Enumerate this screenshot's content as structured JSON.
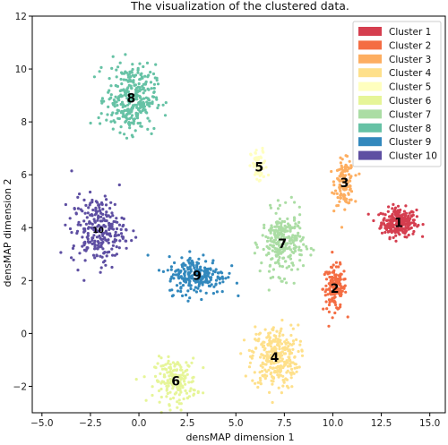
{
  "chart_data": {
    "type": "scatter",
    "title": "The visualization of the clustered data.",
    "xlabel": "densMAP dimension 1",
    "ylabel": "densMAP dimension 2",
    "xlim": [
      -5.5,
      15.8
    ],
    "ylim": [
      -3.0,
      12.0
    ],
    "xticks": [
      -5.0,
      -2.5,
      0.0,
      2.5,
      5.0,
      7.5,
      10.0,
      12.5,
      15.0
    ],
    "xtick_labels": [
      "−5.0",
      "−2.5",
      "0.0",
      "2.5",
      "5.0",
      "7.5",
      "10.0",
      "12.5",
      "15.0"
    ],
    "yticks": [
      -2,
      0,
      2,
      4,
      6,
      8,
      10,
      12
    ],
    "ytick_labels": [
      "−2",
      "0",
      "2",
      "4",
      "6",
      "8",
      "10",
      "12"
    ],
    "grid": false,
    "legend_position": "top-right",
    "series": [
      {
        "name": "Cluster 1",
        "label": "1",
        "color": "#d53e4f",
        "center": [
          13.4,
          4.2
        ],
        "spread": [
          0.75,
          0.45
        ],
        "n": 260
      },
      {
        "name": "Cluster 2",
        "label": "2",
        "color": "#f46d43",
        "center": [
          10.1,
          1.7
        ],
        "spread": [
          0.5,
          0.7
        ],
        "n": 150
      },
      {
        "name": "Cluster 3",
        "label": "3",
        "color": "#fdae61",
        "center": [
          10.6,
          5.7
        ],
        "spread": [
          0.4,
          0.7
        ],
        "n": 130
      },
      {
        "name": "Cluster 4",
        "label": "4",
        "color": "#fee08b",
        "center": [
          7.0,
          -0.9
        ],
        "spread": [
          1.0,
          1.0
        ],
        "n": 300
      },
      {
        "name": "Cluster 5",
        "label": "5",
        "color": "#ffffbf",
        "center": [
          6.2,
          6.3
        ],
        "spread": [
          0.35,
          0.55
        ],
        "n": 70
      },
      {
        "name": "Cluster 6",
        "label": "6",
        "color": "#e6f598",
        "center": [
          1.9,
          -1.8
        ],
        "spread": [
          0.9,
          0.7
        ],
        "n": 180
      },
      {
        "name": "Cluster 7",
        "label": "7",
        "color": "#abdda4",
        "center": [
          7.4,
          3.4
        ],
        "spread": [
          0.9,
          1.0
        ],
        "n": 260
      },
      {
        "name": "Cluster 8",
        "label": "8",
        "color": "#66c2a5",
        "center": [
          -0.4,
          8.9
        ],
        "spread": [
          1.05,
          1.05
        ],
        "n": 320
      },
      {
        "name": "Cluster 9",
        "label": "9",
        "color": "#3288bd",
        "center": [
          3.0,
          2.2
        ],
        "spread": [
          1.25,
          0.6
        ],
        "n": 230
      },
      {
        "name": "Cluster 10",
        "label": "10",
        "color": "#5e4fa2",
        "center": [
          -2.1,
          3.9
        ],
        "spread": [
          1.15,
          1.05
        ],
        "n": 260
      }
    ]
  }
}
